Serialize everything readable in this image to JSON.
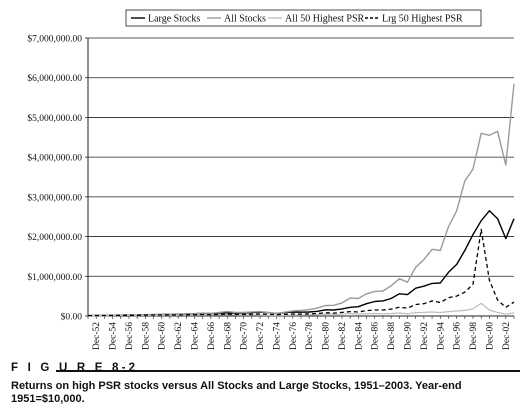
{
  "figure": {
    "label": "F I G U R E   8-2",
    "caption": "Returns on high PSR stocks versus All Stocks and Large Stocks, 1951–2003. Year-end 1951=$10,000."
  },
  "chart_data": {
    "type": "line",
    "ylim": [
      0,
      7000000
    ],
    "yticks": [
      "$0.00",
      "$1,000,000.00",
      "$2,000,000.00",
      "$3,000,000.00",
      "$4,000,000.00",
      "$5,000,000.00",
      "$6,000,000.00",
      "$7,000,000.00"
    ],
    "ytick_values": [
      0,
      1000000,
      2000000,
      3000000,
      4000000,
      5000000,
      6000000,
      7000000
    ],
    "x": [
      "Dec-51",
      "Dec-52",
      "Dec-53",
      "Dec-54",
      "Dec-55",
      "Dec-56",
      "Dec-57",
      "Dec-58",
      "Dec-59",
      "Dec-60",
      "Dec-61",
      "Dec-62",
      "Dec-63",
      "Dec-64",
      "Dec-65",
      "Dec-66",
      "Dec-67",
      "Dec-68",
      "Dec-69",
      "Dec-70",
      "Dec-71",
      "Dec-72",
      "Dec-73",
      "Dec-74",
      "Dec-75",
      "Dec-76",
      "Dec-77",
      "Dec-78",
      "Dec-79",
      "Dec-80",
      "Dec-81",
      "Dec-82",
      "Dec-83",
      "Dec-84",
      "Dec-85",
      "Dec-86",
      "Dec-87",
      "Dec-88",
      "Dec-89",
      "Dec-90",
      "Dec-91",
      "Dec-92",
      "Dec-93",
      "Dec-94",
      "Dec-95",
      "Dec-96",
      "Dec-97",
      "Dec-98",
      "Dec-99",
      "Dec-00",
      "Dec-01",
      "Dec-02",
      "Dec-03"
    ],
    "xtick_labels": [
      "Dec-52",
      "Dec-54",
      "Dec-56",
      "Dec-58",
      "Dec-60",
      "Dec-62",
      "Dec-64",
      "Dec-66",
      "Dec-68",
      "Dec-70",
      "Dec-72",
      "Dec-74",
      "Dec-76",
      "Dec-78",
      "Dec-80",
      "Dec-82",
      "Dec-84",
      "Dec-86",
      "Dec-88",
      "Dec-90",
      "Dec-92",
      "Dec-94",
      "Dec-96",
      "Dec-98",
      "Dec-00",
      "Dec-02"
    ],
    "legend_position": "top",
    "grid": "horizontal",
    "series": [
      {
        "name": "Large Stocks",
        "color": "#000000",
        "dash": "solid",
        "values": [
          10000,
          12000,
          13000,
          19000,
          22000,
          24000,
          23000,
          32000,
          36000,
          37000,
          46000,
          43000,
          51000,
          59000,
          67000,
          60000,
          72000,
          80000,
          74000,
          76000,
          86000,
          100000,
          85000,
          62000,
          85000,
          100000,
          95000,
          100000,
          118000,
          155000,
          150000,
          180000,
          220000,
          235000,
          310000,
          365000,
          380000,
          440000,
          560000,
          540000,
          700000,
          750000,
          820000,
          830000,
          1100000,
          1300000,
          1650000,
          2050000,
          2400000,
          2650000,
          2450000,
          1950000,
          2450000
        ]
      },
      {
        "name": "All Stocks",
        "color": "#9a9a9a",
        "dash": "solid",
        "values": [
          10000,
          11000,
          11500,
          17000,
          21000,
          22000,
          20000,
          30000,
          35000,
          36000,
          46000,
          40000,
          49000,
          58000,
          72000,
          66000,
          90000,
          110000,
          90000,
          88000,
          103000,
          112000,
          88000,
          65000,
          95000,
          125000,
          140000,
          160000,
          200000,
          265000,
          270000,
          330000,
          450000,
          440000,
          560000,
          620000,
          630000,
          760000,
          940000,
          850000,
          1230000,
          1420000,
          1680000,
          1650000,
          2250000,
          2650000,
          3400000,
          3700000,
          4600000,
          4550000,
          4650000,
          3800000,
          5850000
        ]
      },
      {
        "name": "All 50 Highest PSR",
        "color": "#bdbdbd",
        "dash": "solid",
        "values": [
          10000,
          10500,
          10000,
          13000,
          14000,
          14500,
          13000,
          16000,
          17000,
          16000,
          19000,
          16000,
          18000,
          20000,
          24000,
          20000,
          29000,
          36000,
          26000,
          21000,
          25000,
          23000,
          16000,
          11000,
          16000,
          20000,
          22000,
          26000,
          34000,
          48000,
          40000,
          46000,
          62000,
          48000,
          60000,
          62000,
          56000,
          62000,
          75000,
          55000,
          85000,
          90000,
          100000,
          88000,
          110000,
          125000,
          140000,
          180000,
          320000,
          150000,
          90000,
          45000,
          80000
        ]
      },
      {
        "name": "Lrg 50 Highest PSR",
        "color": "#000000",
        "dash": "dashed",
        "values": [
          10000,
          11000,
          11500,
          15000,
          17000,
          18000,
          17000,
          22000,
          24000,
          24000,
          29000,
          26000,
          30000,
          34000,
          38000,
          34000,
          42000,
          46000,
          42000,
          40000,
          46000,
          52000,
          44000,
          33000,
          42000,
          50000,
          48000,
          52000,
          62000,
          80000,
          72000,
          90000,
          110000,
          100000,
          135000,
          150000,
          150000,
          175000,
          220000,
          200000,
          290000,
          310000,
          380000,
          340000,
          460000,
          500000,
          600000,
          800000,
          2180000,
          900000,
          400000,
          220000,
          350000
        ]
      }
    ]
  }
}
